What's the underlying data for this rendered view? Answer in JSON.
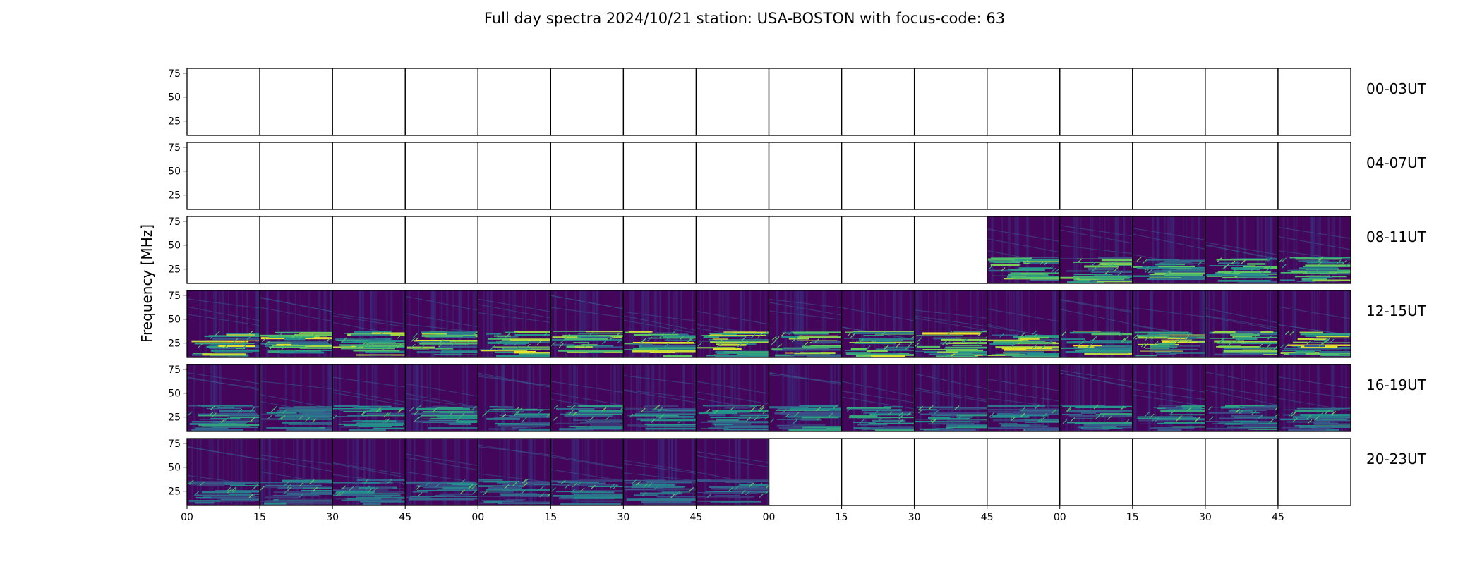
{
  "chart_data": {
    "type": "heatmap",
    "title": "Full day spectra 2024/10/21 station: USA-BOSTON with focus-code: 63",
    "ylabel": "Frequency [MHz]",
    "yticks": [
      25,
      50,
      75
    ],
    "ylim": [
      10,
      80
    ],
    "xtick_labels": [
      "00",
      "15",
      "30",
      "45",
      "00",
      "15",
      "30",
      "45",
      "00",
      "15",
      "30",
      "45",
      "00",
      "15",
      "30",
      "45"
    ],
    "colormap": [
      "#440154",
      "#3b528b",
      "#21918c",
      "#5ec962",
      "#fde725"
    ],
    "rows": [
      {
        "label": "00-03UT",
        "filled": [
          false,
          false,
          false,
          false,
          false,
          false,
          false,
          false,
          false,
          false,
          false,
          false,
          false,
          false,
          false,
          false
        ]
      },
      {
        "label": "04-07UT",
        "filled": [
          false,
          false,
          false,
          false,
          false,
          false,
          false,
          false,
          false,
          false,
          false,
          false,
          false,
          false,
          false,
          false
        ]
      },
      {
        "label": "08-11UT",
        "filled": [
          false,
          false,
          false,
          false,
          false,
          false,
          false,
          false,
          false,
          false,
          false,
          true,
          true,
          true,
          true,
          true
        ]
      },
      {
        "label": "12-15UT",
        "filled": [
          true,
          true,
          true,
          true,
          true,
          true,
          true,
          true,
          true,
          true,
          true,
          true,
          true,
          true,
          true,
          true
        ]
      },
      {
        "label": "16-19UT",
        "filled": [
          true,
          true,
          true,
          true,
          true,
          true,
          true,
          true,
          true,
          true,
          true,
          true,
          true,
          true,
          true,
          true
        ]
      },
      {
        "label": "20-23UT",
        "filled": [
          true,
          true,
          true,
          true,
          true,
          true,
          true,
          true,
          false,
          false,
          false,
          false,
          false,
          false,
          false,
          false
        ]
      }
    ]
  }
}
